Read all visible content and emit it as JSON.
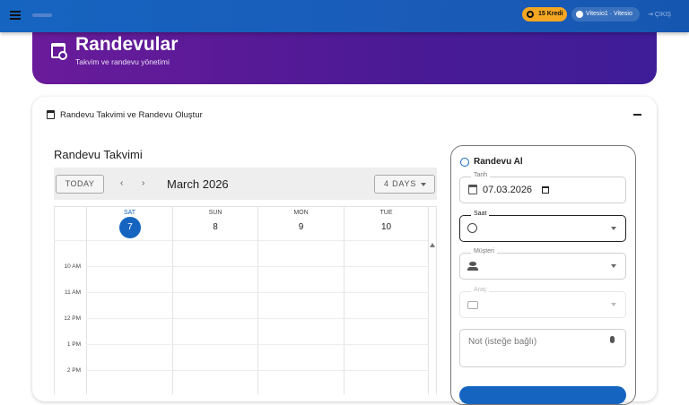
{
  "header": {
    "menu_icon": "hamburger-icon",
    "credits": "15 Kredi",
    "user": "Vitesio1 · Vitesio",
    "logout": "ÇIKIŞ",
    "credit_color": "#f5a623"
  },
  "banner": {
    "title": "Randevular",
    "subtitle": "Takvim ve randevu yönetimi",
    "icon": "calendar-clock-icon"
  },
  "section": {
    "title": "Randevu Takvimi ve Randevu Oluştur",
    "collapse_icon": "minus-icon"
  },
  "calendar": {
    "title": "Randevu Takvimi",
    "today": "TODAY",
    "month": "March 2026",
    "view": "4 DAYS",
    "days": [
      {
        "name": "SAT",
        "date": "7",
        "today": true
      },
      {
        "name": "SUN",
        "date": "8"
      },
      {
        "name": "MON",
        "date": "9"
      },
      {
        "name": "TUE",
        "date": "10"
      }
    ],
    "hours": [
      "10 AM",
      "11 AM",
      "12 PM",
      "1 PM",
      "2 PM"
    ]
  },
  "form": {
    "title": "Randevu Al",
    "date_label": "Tarih",
    "date_value": "07.03.2026",
    "time_label": "Saat",
    "customer_label": "Müşteri",
    "vehicle_label": "Araç",
    "note_placeholder": "Not (isteğe bağlı)"
  }
}
